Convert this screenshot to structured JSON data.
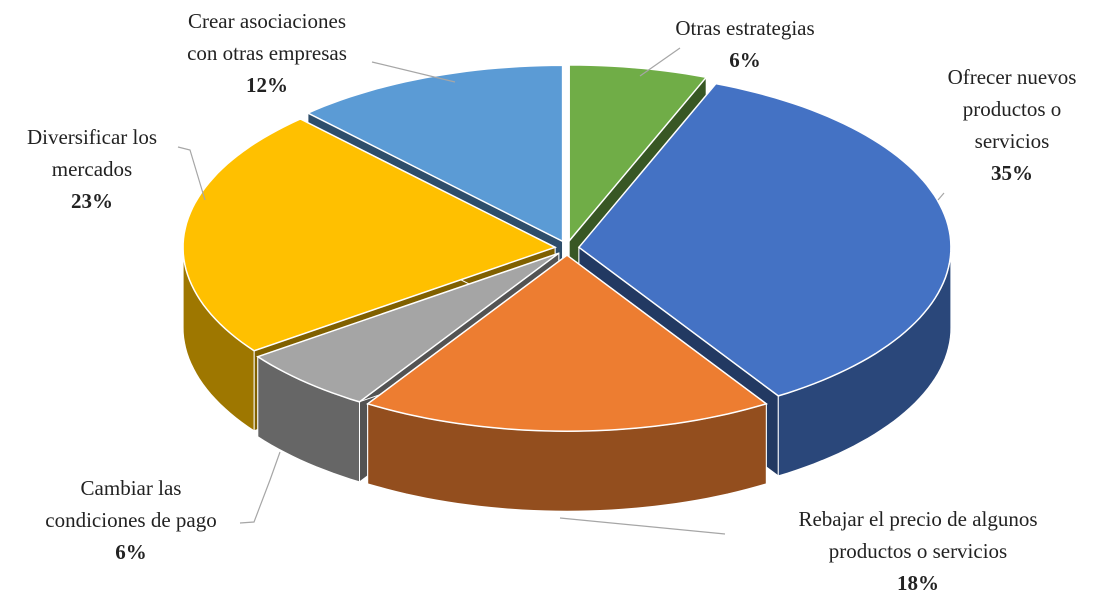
{
  "chart_data": {
    "type": "pie3d",
    "categories": [
      "Otras estrategias",
      "Ofrecer nuevos productos o servicios",
      "Rebajar el precio de algunos productos o servicios",
      "Cambiar las condiciones de pago",
      "Diversificar los mercados",
      "Crear asociaciones con otras empresas"
    ],
    "values": [
      6,
      35,
      18,
      6,
      23,
      12
    ],
    "value_labels": [
      "6%",
      "35%",
      "18%",
      "6%",
      "23%",
      "12%"
    ],
    "colors": [
      "#70ad47",
      "#4472c4",
      "#ed7d31",
      "#a5a5a5",
      "#ffc000",
      "#5b9bd5"
    ]
  }
}
